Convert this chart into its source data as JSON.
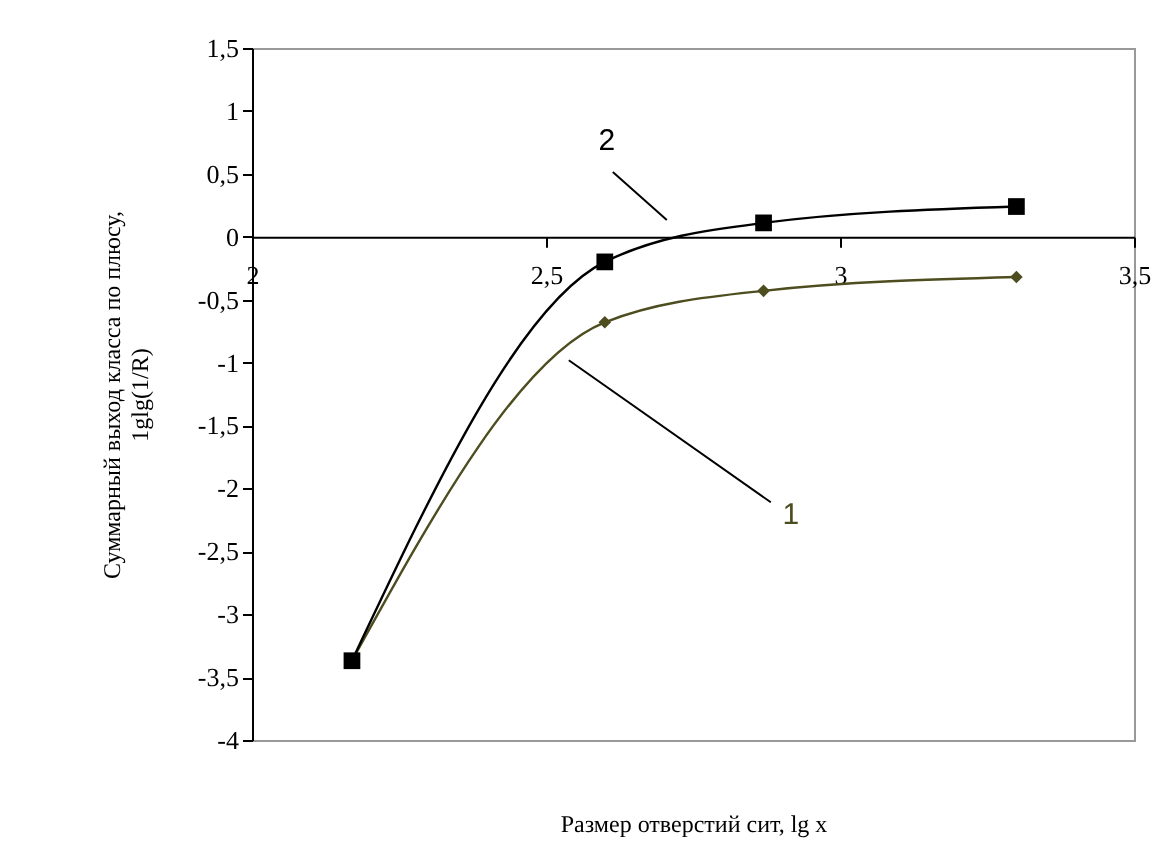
{
  "chart_data": {
    "type": "line",
    "xlabel": "Размер отверстий сит, lg x",
    "ylabel": "Суммарный выход класса по плюсу, 1glg(1/R)",
    "xlim": [
      2,
      3.5
    ],
    "xticks": [
      2,
      {
        "value": 2.5,
        "label": "2,5"
      },
      3,
      {
        "value": 3.5,
        "label": "3,5"
      }
    ],
    "ylim": [
      -4,
      1.5
    ],
    "yticks": [
      -4,
      {
        "value": -3.5,
        "label": "-3,5"
      },
      -3,
      {
        "value": -2.5,
        "label": "-2,5"
      },
      -2,
      {
        "value": -1.5,
        "label": "-1,5"
      },
      -1,
      {
        "value": -0.5,
        "label": "-0,5"
      },
      0,
      {
        "value": 0.5,
        "label": "0,5"
      },
      1,
      {
        "value": 1.5,
        "label": "1,5"
      }
    ],
    "grid": false,
    "series": [
      {
        "name": "1",
        "color": "#4d4d1f",
        "marker": "diamond",
        "x": [
          2.17,
          2.6,
          2.87,
          3.3
        ],
        "values": [
          -3.37,
          -0.68,
          -0.43,
          -0.32
        ]
      },
      {
        "name": "2",
        "color": "#000000",
        "marker": "square",
        "x": [
          2.17,
          2.6,
          2.87,
          3.3
        ],
        "values": [
          -3.37,
          -0.2,
          0.11,
          0.24
        ]
      }
    ]
  }
}
